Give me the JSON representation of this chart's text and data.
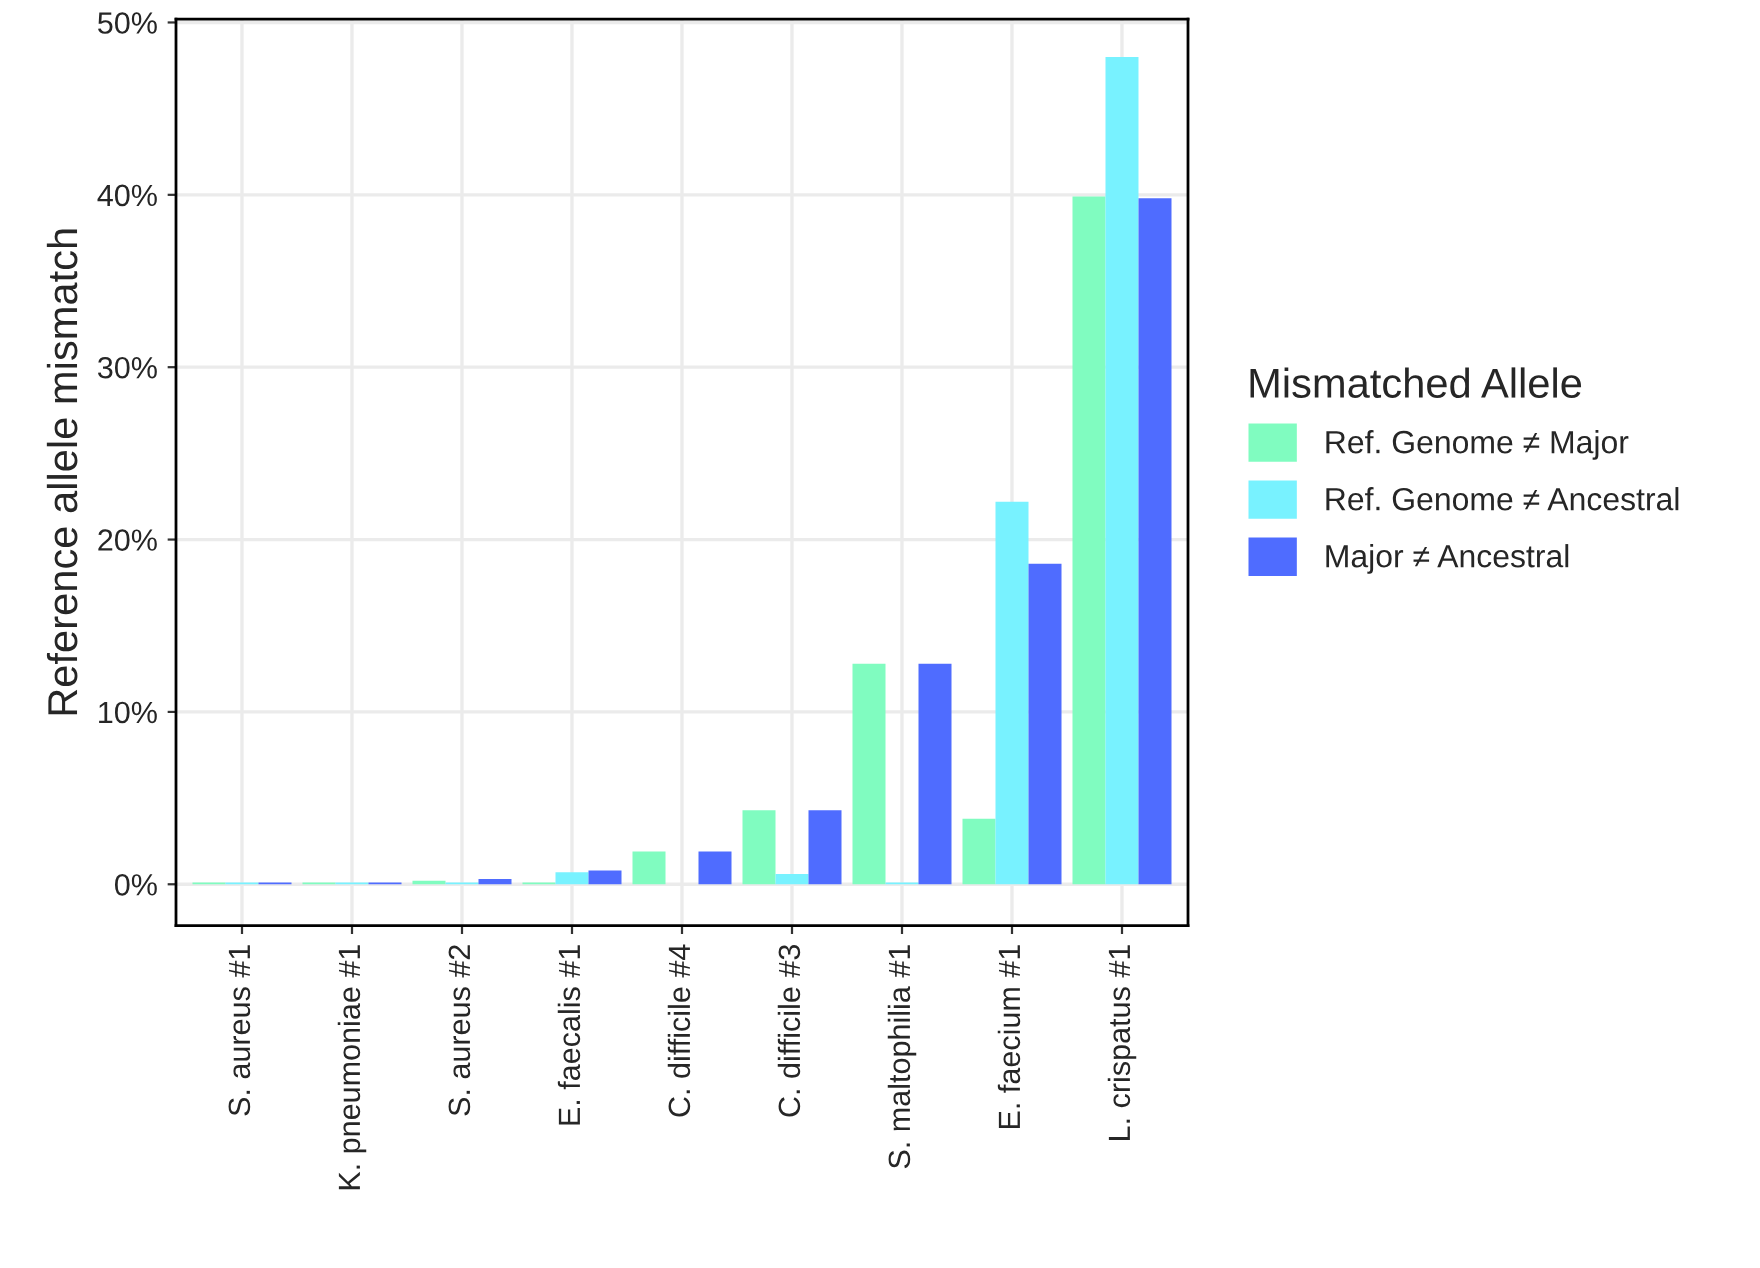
{
  "chart_data": {
    "type": "bar",
    "ylabel": "Reference allele mismatch",
    "legend_title": "Mismatched Allele",
    "categories": [
      "S. aureus #1",
      "K. pneumoniae #1",
      "S. aureus #2",
      "E. faecalis #1",
      "C. difficile #4",
      "C. difficile #3",
      "S. maltophilia #1",
      "E. faecium #1",
      "L. crispatus #1"
    ],
    "series": [
      {
        "name": "Ref. Genome ≠ Major",
        "color": "#80fcc0",
        "values": [
          0.1,
          0.1,
          0.2,
          0.1,
          1.9,
          4.3,
          12.8,
          3.8,
          39.9
        ]
      },
      {
        "name": "Ref. Genome ≠ Ancestral",
        "color": "#78f2ff",
        "values": [
          0.1,
          0.1,
          0.1,
          0.7,
          null,
          0.6,
          0.1,
          22.2,
          48.0
        ]
      },
      {
        "name": "Major ≠ Ancestral",
        "color": "#4f6cff",
        "values": [
          0.1,
          0.1,
          0.3,
          0.8,
          1.9,
          4.3,
          12.8,
          18.6,
          39.8
        ]
      }
    ],
    "ylim": [
      -2.4,
      50.2
    ],
    "yticks": [
      {
        "value": 0,
        "label": "0%"
      },
      {
        "value": 10,
        "label": "10%"
      },
      {
        "value": 20,
        "label": "20%"
      },
      {
        "value": 30,
        "label": "30%"
      },
      {
        "value": 40,
        "label": "40%"
      },
      {
        "value": 50,
        "label": "50%"
      }
    ],
    "grid": true,
    "legend": "right"
  }
}
